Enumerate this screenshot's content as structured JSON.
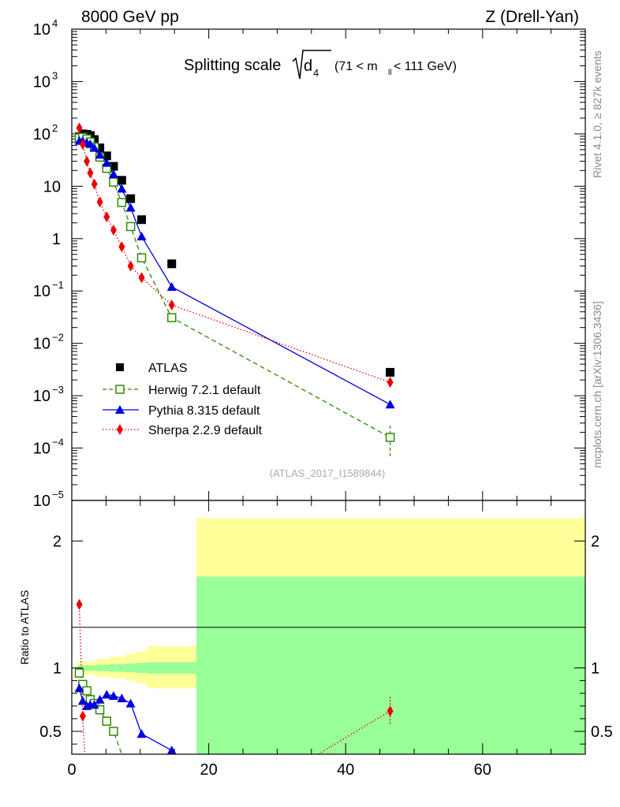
{
  "header": {
    "energy": "8000 GeV pp",
    "process": "Z (Drell-Yan)"
  },
  "side_text": {
    "rivet": "Rivet 4.1.0, ≥ 827k events",
    "mcplots": "mcplots.cern.ch [arXiv:1306.3436]"
  },
  "chart_data": [
    {
      "type": "scatter",
      "yscale": "log",
      "title": {
        "prefix": "Splitting scale",
        "sqrt_symbol": "d",
        "sqrt_sub": "4",
        "cut_open": "(71 < m",
        "cut_sub": "ll",
        "cut_close": " < 111 GeV)"
      },
      "analysis_id": "(ATLAS_2017_I1589844)",
      "xlim": [
        0,
        75
      ],
      "ylim": [
        1e-05,
        10000.0
      ],
      "y_tick_labels": [
        {
          "value": 10000.0,
          "base": "10",
          "exp": "4"
        },
        {
          "value": 1000.0,
          "base": "10",
          "exp": "3"
        },
        {
          "value": 100.0,
          "base": "10",
          "exp": "2"
        },
        {
          "value": 10,
          "base": "10",
          "exp": ""
        },
        {
          "value": 1,
          "base": "1",
          "exp": ""
        },
        {
          "value": 0.1,
          "base": "10",
          "exp": "−1"
        },
        {
          "value": 0.01,
          "base": "10",
          "exp": "−2"
        },
        {
          "value": 0.001,
          "base": "10",
          "exp": "−3"
        },
        {
          "value": 0.0001,
          "base": "10",
          "exp": "−4"
        },
        {
          "value": 1e-05,
          "base": "10",
          "exp": "−5"
        }
      ],
      "legend_position": "bottom-left",
      "series": [
        {
          "name": "ATLAS",
          "color": "#000000",
          "marker": "square",
          "x": [
            1.1,
            1.6,
            2.2,
            2.7,
            3.3,
            4.1,
            5.1,
            6.1,
            7.3,
            8.6,
            10.2,
            14.6,
            46.5
          ],
          "y": [
            88,
            100,
            98,
            93,
            78,
            54,
            38,
            24,
            13,
            5.8,
            2.3,
            0.33,
            0.0028
          ]
        },
        {
          "name": "Herwig 7.2.1 default",
          "color": "#2e8b00",
          "marker": "open-square",
          "line": "dashed",
          "x": [
            1.1,
            1.6,
            2.2,
            2.7,
            3.3,
            4.1,
            5.1,
            6.1,
            7.3,
            8.6,
            10.2,
            14.6,
            46.5
          ],
          "y": [
            84,
            86,
            80,
            70,
            56,
            36,
            22,
            12,
            4.9,
            1.7,
            0.43,
            0.031,
            0.00016
          ],
          "last_err": [
            7e-05,
            0.00028
          ]
        },
        {
          "name": "Pythia 8.315 default",
          "color": "#0000dd",
          "marker": "triangle",
          "line": "solid",
          "x": [
            1.1,
            1.6,
            2.2,
            2.7,
            3.3,
            4.1,
            5.1,
            6.1,
            7.3,
            8.6,
            10.2,
            14.6,
            46.5
          ],
          "y": [
            74,
            74,
            68,
            64,
            54,
            40,
            28,
            17,
            9.0,
            3.9,
            1.1,
            0.12,
            0.00068
          ]
        },
        {
          "name": "Sherpa 2.2.9 default",
          "color": "#ee0000",
          "marker": "diamond",
          "line": "dotted",
          "x": [
            1.1,
            1.6,
            2.2,
            2.7,
            3.3,
            4.1,
            5.1,
            6.1,
            7.3,
            8.6,
            10.2,
            14.6,
            46.5
          ],
          "y": [
            130,
            63,
            30,
            18,
            11,
            5.0,
            2.6,
            1.45,
            0.7,
            0.3,
            0.18,
            0.054,
            0.0018
          ]
        }
      ]
    },
    {
      "type": "scatter",
      "ylabel": "Ratio to ATLAS",
      "xlim": [
        0,
        75
      ],
      "ylim": [
        0.32,
        2.32
      ],
      "x_ticks": [
        0,
        20,
        40,
        60
      ],
      "y_ticks": [
        0.5,
        1,
        2
      ],
      "uncertainty_bands": [
        {
          "x0": 0.8,
          "x1": 1.4,
          "green": [
            0.98,
            1.02
          ],
          "yellow": [
            0.95,
            1.05
          ]
        },
        {
          "x0": 1.4,
          "x1": 2.0,
          "green": [
            0.98,
            1.02
          ],
          "yellow": [
            0.95,
            1.05
          ]
        },
        {
          "x0": 2.0,
          "x1": 2.5,
          "green": [
            0.98,
            1.02
          ],
          "yellow": [
            0.95,
            1.05
          ]
        },
        {
          "x0": 2.5,
          "x1": 3.0,
          "green": [
            0.98,
            1.02
          ],
          "yellow": [
            0.95,
            1.05
          ]
        },
        {
          "x0": 3.0,
          "x1": 3.7,
          "green": [
            0.98,
            1.02
          ],
          "yellow": [
            0.95,
            1.05
          ]
        },
        {
          "x0": 3.7,
          "x1": 4.5,
          "green": [
            0.975,
            1.025
          ],
          "yellow": [
            0.93,
            1.07
          ]
        },
        {
          "x0": 4.5,
          "x1": 5.6,
          "green": [
            0.975,
            1.025
          ],
          "yellow": [
            0.93,
            1.07
          ]
        },
        {
          "x0": 5.6,
          "x1": 6.6,
          "green": [
            0.97,
            1.03
          ],
          "yellow": [
            0.92,
            1.09
          ]
        },
        {
          "x0": 6.6,
          "x1": 7.9,
          "green": [
            0.97,
            1.03
          ],
          "yellow": [
            0.92,
            1.09
          ]
        },
        {
          "x0": 7.9,
          "x1": 9.4,
          "green": [
            0.965,
            1.035
          ],
          "yellow": [
            0.9,
            1.11
          ]
        },
        {
          "x0": 9.4,
          "x1": 11.0,
          "green": [
            0.96,
            1.04
          ],
          "yellow": [
            0.88,
            1.13
          ]
        },
        {
          "x0": 11.0,
          "x1": 18.2,
          "green": [
            0.955,
            1.045
          ],
          "yellow": [
            0.84,
            1.17
          ]
        },
        {
          "x0": 18.2,
          "x1": 75.0,
          "green": [
            0.32,
            1.72
          ],
          "yellow": [
            0.32,
            2.18
          ]
        }
      ],
      "series": [
        {
          "name": "Herwig 7.2.1 default",
          "color": "#2e8b00",
          "marker": "open-square",
          "line": "dashed",
          "x": [
            1.1,
            1.6,
            2.2,
            2.7,
            3.3,
            4.1,
            5.1,
            6.1,
            7.3
          ],
          "y": [
            0.96,
            0.87,
            0.82,
            0.75,
            0.72,
            0.67,
            0.58,
            0.5,
            0.32
          ]
        },
        {
          "name": "Pythia 8.315 default",
          "color": "#0000dd",
          "marker": "triangle",
          "line": "solid",
          "x": [
            1.1,
            1.6,
            2.2,
            2.7,
            3.3,
            4.1,
            5.1,
            6.1,
            7.3,
            8.6,
            10.2,
            14.6
          ],
          "y": [
            0.84,
            0.74,
            0.7,
            0.71,
            0.71,
            0.75,
            0.79,
            0.78,
            0.76,
            0.72,
            0.48,
            0.35
          ]
        },
        {
          "name": "Sherpa 2.2.9 default",
          "color": "#ee0000",
          "marker": "diamond",
          "line": "dotted",
          "x": [
            1.1,
            1.6,
            46.5
          ],
          "y": [
            1.5,
            0.62,
            0.66
          ],
          "clip_segments": [
            [
              1.6,
              0.62,
              1.9,
              0.32
            ],
            [
              36.0,
              0.32,
              46.5,
              0.66
            ]
          ],
          "last_err": [
            0.56,
            0.77
          ]
        }
      ]
    }
  ]
}
